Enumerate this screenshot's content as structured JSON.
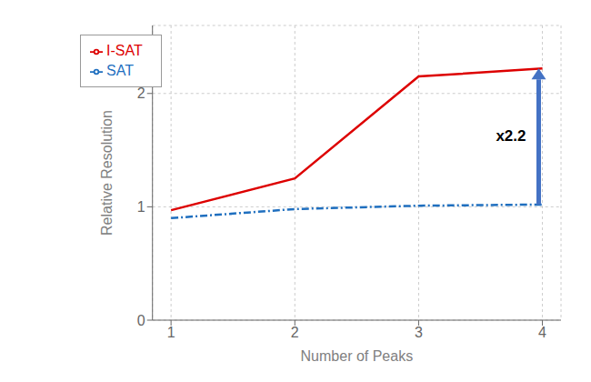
{
  "chart_data": {
    "type": "line",
    "x": [
      1,
      2,
      3,
      4
    ],
    "series": [
      {
        "name": "SAT",
        "color": "#1F6FBF",
        "values": [
          0.9,
          0.98,
          1.01,
          1.02
        ],
        "line_style": "dashed"
      },
      {
        "name": "I-SAT",
        "color": "#DD0000",
        "values": [
          0.97,
          1.25,
          2.15,
          2.22
        ],
        "line_style": "solid"
      }
    ],
    "xlabel": "Number of Peaks",
    "ylabel": "Relative Resolution",
    "xlim": [
      0.85,
      4.15
    ],
    "xticks": [
      1,
      2,
      3,
      4
    ],
    "ylim": [
      0,
      2.6
    ],
    "yticks": [
      0,
      1,
      2
    ],
    "grid": true,
    "legend": "upper left",
    "annotations": [
      {
        "text": "x2.2",
        "x": 3.97,
        "y_start": 1.02,
        "y_end": 2.22,
        "color": "#4472C4"
      }
    ]
  }
}
